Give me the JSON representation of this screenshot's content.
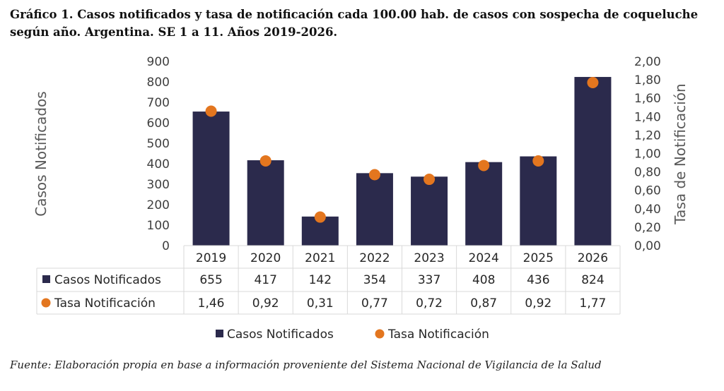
{
  "title": "Gráfico 1. Casos notificados y tasa de notificación cada 100.00 hab. de casos con sospecha de coqueluche según año. Argentina. SE 1 a 11. Años 2019-2026.",
  "source": "Fuente: Elaboración propia en base a información proveniente del Sistema Nacional de Vigilancia de la Salud",
  "chart_data": {
    "type": "bar",
    "categories": [
      "2019",
      "2020",
      "2021",
      "2022",
      "2023",
      "2024",
      "2025",
      "2026"
    ],
    "series": [
      {
        "name": "Casos Notificados",
        "type": "bar",
        "axis": "left",
        "color": "#2b2a4c",
        "values": [
          655,
          417,
          142,
          354,
          337,
          408,
          436,
          824
        ],
        "value_labels": [
          "655",
          "417",
          "142",
          "354",
          "337",
          "408",
          "436",
          "824"
        ]
      },
      {
        "name": "Tasa Notificación",
        "type": "scatter",
        "axis": "right",
        "color": "#e3761f",
        "values": [
          1.46,
          0.92,
          0.31,
          0.77,
          0.72,
          0.87,
          0.92,
          1.77
        ],
        "value_labels": [
          "1,46",
          "0,92",
          "0,31",
          "0,77",
          "0,72",
          "0,87",
          "0,92",
          "1,77"
        ]
      }
    ],
    "ylabel": "Casos Notificados",
    "y2label": "Tasa de Notificación",
    "ylim": [
      0,
      900
    ],
    "y2lim": [
      0,
      2
    ],
    "yticks": [
      "0",
      "100",
      "200",
      "300",
      "400",
      "500",
      "600",
      "700",
      "800",
      "900"
    ],
    "y2ticks": [
      "0,00",
      "0,20",
      "0,40",
      "0,60",
      "0,80",
      "1,00",
      "1,20",
      "1,40",
      "1,60",
      "1,80",
      "2,00"
    ],
    "data_table": true,
    "grid": false,
    "legend": "bottom"
  }
}
